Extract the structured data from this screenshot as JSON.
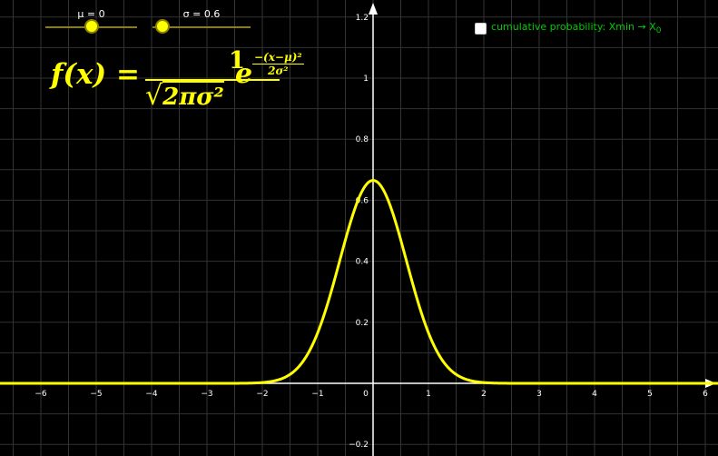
{
  "sliders": {
    "mu": {
      "label": "μ = 0",
      "value": 0,
      "min": -5,
      "max": 5
    },
    "sigma": {
      "label": "σ = 0.6",
      "value": 0.6,
      "min": 0.1,
      "max": 5
    }
  },
  "formula": {
    "lhs": "f(x)",
    "equals": " = ",
    "numerator": "1",
    "radical": "√",
    "denominator": "2πσ²",
    "base": "e",
    "exp_numerator": "−(x−μ)²",
    "exp_denominator": "2σ²"
  },
  "checkbox": {
    "label": "cumulative probability: Xmin → X",
    "subscript": "0",
    "checked": false
  },
  "colors": {
    "curve": "#ffff00",
    "axis": "#ffffff",
    "grid": "#333333",
    "checkbox_text": "#00cc00"
  },
  "chart_data": {
    "type": "line",
    "function": "normal_pdf",
    "mu": 0,
    "sigma": 0.6,
    "xlim": [
      -6.75,
      6.2
    ],
    "ylim": [
      -0.23,
      1.24
    ],
    "x_ticks": [
      -6,
      -5,
      -4,
      -3,
      -2,
      -1,
      0,
      1,
      2,
      3,
      4,
      5,
      6
    ],
    "x_tick_labels": [
      "−6",
      "−5",
      "−4",
      "−3",
      "−2",
      "−1",
      "0",
      "1",
      "2",
      "3",
      "4",
      "5",
      "6"
    ],
    "y_ticks": [
      -0.2,
      0.2,
      0.4,
      0.6,
      0.8,
      1,
      1.2
    ],
    "y_tick_labels": [
      "−0.2",
      "0.2",
      "0.4",
      "0.6",
      "0.8",
      "1",
      "1.2"
    ],
    "grid": true
  }
}
